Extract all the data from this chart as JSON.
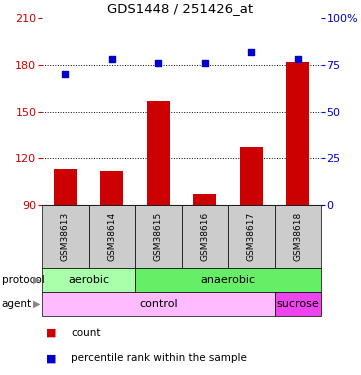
{
  "title": "GDS1448 / 251426_at",
  "samples": [
    "GSM38613",
    "GSM38614",
    "GSM38615",
    "GSM38616",
    "GSM38617",
    "GSM38618"
  ],
  "bar_values": [
    113,
    112,
    157,
    97,
    127,
    182
  ],
  "dot_values": [
    70,
    78,
    76,
    76,
    82,
    78
  ],
  "bar_bottom": 90,
  "ylim_left": [
    90,
    210
  ],
  "ylim_right": [
    0,
    100
  ],
  "yticks_left": [
    90,
    120,
    150,
    180,
    210
  ],
  "yticks_right": [
    0,
    25,
    50,
    75,
    100
  ],
  "bar_color": "#cc0000",
  "dot_color": "#0000cc",
  "protocol_labels": [
    [
      "aerobic",
      0,
      2
    ],
    [
      "anaerobic",
      2,
      6
    ]
  ],
  "protocol_colors": [
    "#aaffaa",
    "#66ee66"
  ],
  "agent_labels": [
    [
      "control",
      0,
      5
    ],
    [
      "sucrose",
      5,
      6
    ]
  ],
  "agent_colors": [
    "#ffbbff",
    "#ee44ee"
  ],
  "grid_dotted_values": [
    120,
    150,
    180
  ],
  "left_tick_color": "#cc0000",
  "right_tick_color": "#0000cc",
  "figsize": [
    3.61,
    3.75
  ],
  "dpi": 100,
  "sample_bg": "#cccccc",
  "fig_bg": "#ffffff"
}
